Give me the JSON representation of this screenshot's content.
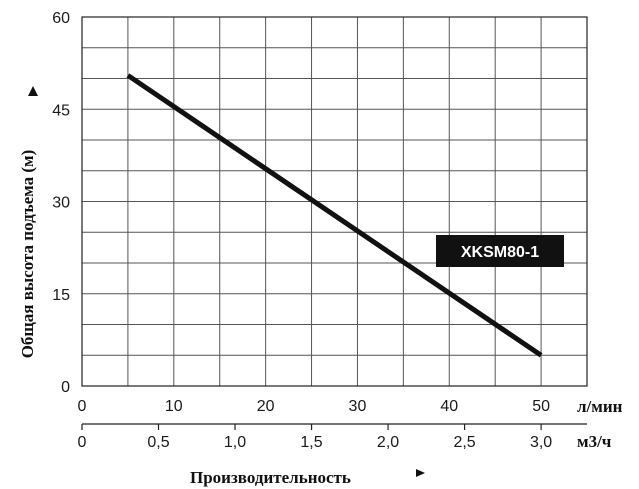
{
  "chart_data": {
    "type": "line",
    "ylabel": "Общая высота подъема (м)",
    "xlabel": "Производительность",
    "y_axis": {
      "min": 0,
      "max": 60,
      "ticks": [
        "0",
        "15",
        "30",
        "45",
        "60"
      ],
      "minor_step": 5
    },
    "x_axis_primary": {
      "unit": "л/мин",
      "min": 0,
      "max": 55,
      "ticks": [
        "0",
        "10",
        "20",
        "30",
        "40",
        "50"
      ],
      "minor_step": 5
    },
    "x_axis_secondary": {
      "unit": "м3/ч",
      "ticks": [
        "0",
        "0,5",
        "1,0",
        "1,5",
        "2,0",
        "2,5",
        "3,0"
      ]
    },
    "grid": true,
    "legend_position": "right",
    "series": [
      {
        "name": "XKSM80-1",
        "color": "#111111",
        "x": [
          5,
          50
        ],
        "y": [
          50.5,
          5
        ]
      }
    ]
  }
}
